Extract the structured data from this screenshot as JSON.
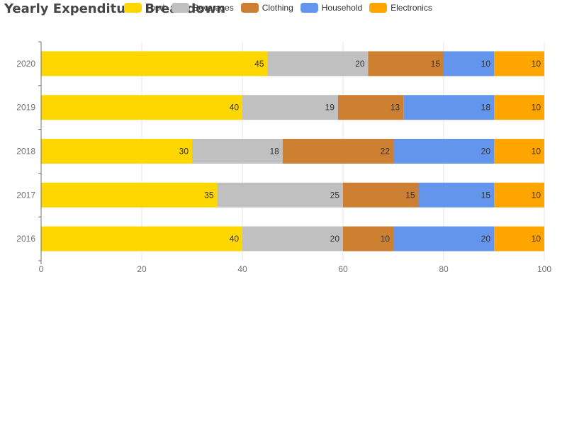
{
  "chart_data": {
    "type": "bar",
    "orientation": "horizontal",
    "stacked": true,
    "title": "Yearly Expenditure Breakdown",
    "categories": [
      "2016",
      "2017",
      "2018",
      "2019",
      "2020"
    ],
    "series": [
      {
        "name": "Food",
        "color": "#FFD700",
        "values": [
          40,
          35,
          30,
          40,
          45
        ]
      },
      {
        "name": "Beverages",
        "color": "#C0C0C0",
        "values": [
          20,
          25,
          18,
          19,
          20
        ]
      },
      {
        "name": "Clothing",
        "color": "#CD7F32",
        "values": [
          10,
          15,
          22,
          13,
          15
        ]
      },
      {
        "name": "Household",
        "color": "#6495ED",
        "values": [
          20,
          15,
          20,
          18,
          10
        ]
      },
      {
        "name": "Electronics",
        "color": "#FFA500",
        "values": [
          10,
          10,
          10,
          10,
          10
        ]
      }
    ],
    "xlim": [
      0,
      100
    ],
    "xticks": [
      "0",
      "20",
      "40",
      "60",
      "80",
      "100"
    ],
    "grid": true,
    "data_labels": true,
    "legend_position": "top"
  }
}
